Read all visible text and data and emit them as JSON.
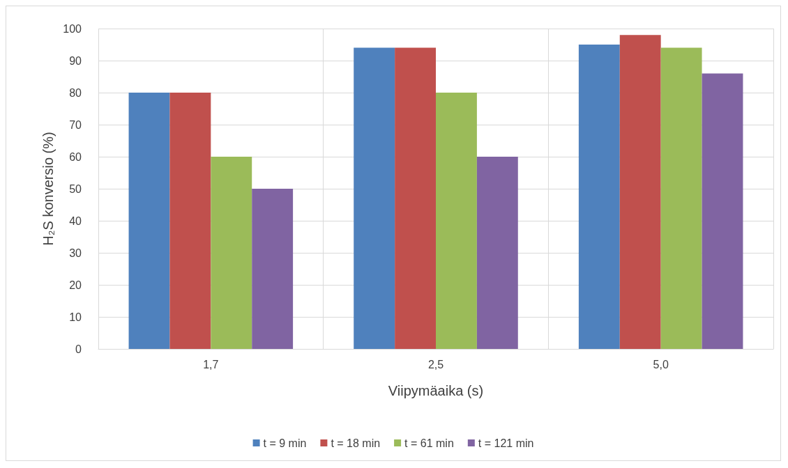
{
  "chart_data": {
    "type": "bar",
    "xlabel": "Viipymäaika (s)",
    "ylabel": "H₂S konversio (%)",
    "categories": [
      "1,7",
      "2,5",
      "5,0"
    ],
    "series": [
      {
        "name": "t = 9 min",
        "color": "#4f81bd",
        "values": [
          80,
          94,
          95
        ]
      },
      {
        "name": "t = 18 min",
        "color": "#c0504d",
        "values": [
          80,
          94,
          98
        ]
      },
      {
        "name": "t = 61 min",
        "color": "#9bbb59",
        "values": [
          60,
          80,
          94
        ]
      },
      {
        "name": "t = 121 min",
        "color": "#8064a2",
        "values": [
          50,
          60,
          86
        ]
      }
    ],
    "ylim": [
      0,
      100
    ],
    "yticks": [
      0,
      10,
      20,
      30,
      40,
      50,
      60,
      70,
      80,
      90,
      100
    ],
    "grid": true,
    "legend": "bottom"
  }
}
